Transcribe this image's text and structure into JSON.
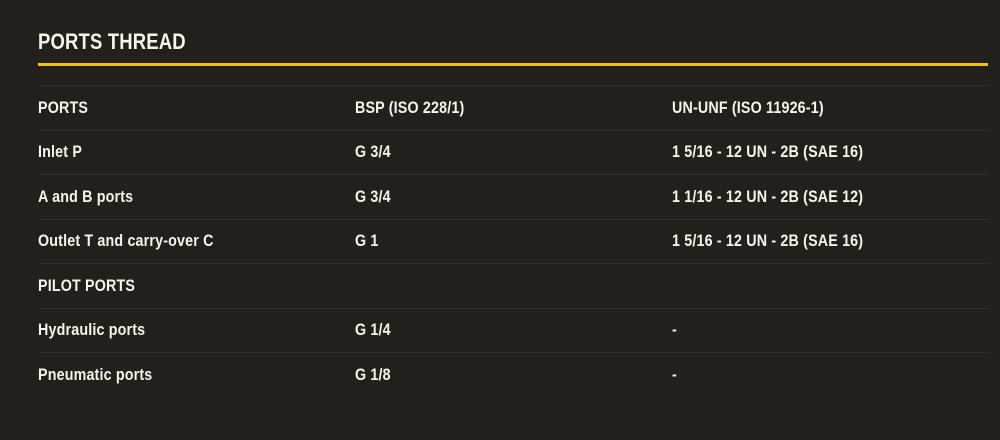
{
  "theme": {
    "background_color": "#221f1c",
    "text_color": "#f7f3ee",
    "accent_color": "#f0c11e",
    "divider_color": "rgba(255,255,255,0.07)"
  },
  "section": {
    "title": "PORTS THREAD"
  },
  "table": {
    "columns": [
      "PORTS",
      "BSP (ISO 228/1)",
      "UN-UNF (ISO 11926-1)"
    ],
    "rows": [
      {
        "label": "Inlet P",
        "bsp": "G 3/4",
        "un_unf": "1 5/16 - 12 UN - 2B (SAE 16)"
      },
      {
        "label": "A and B ports",
        "bsp": "G 3/4",
        "un_unf": "1 1/16 - 12 UN - 2B (SAE 12)"
      },
      {
        "label": "Outlet T and carry-over C",
        "bsp": "G 1",
        "un_unf": "1 5/16 - 12 UN - 2B (SAE 16)"
      },
      {
        "label": "PILOT PORTS",
        "bsp": "",
        "un_unf": ""
      },
      {
        "label": "Hydraulic ports",
        "bsp": "G 1/4",
        "un_unf": "-"
      },
      {
        "label": "Pneumatic ports",
        "bsp": "G 1/8",
        "un_unf": "-"
      }
    ]
  }
}
